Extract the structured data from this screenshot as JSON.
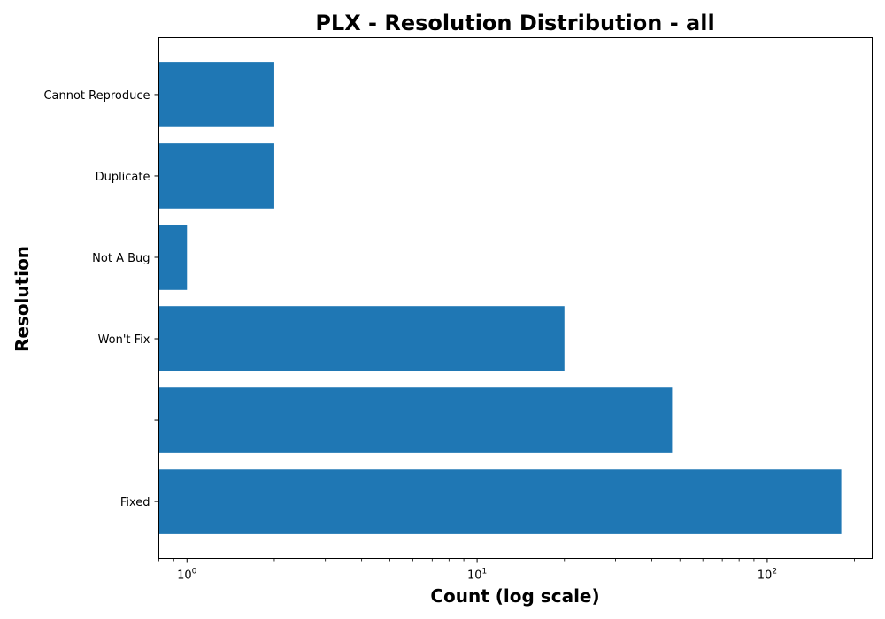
{
  "chart_data": {
    "type": "bar",
    "orientation": "horizontal",
    "title": "PLX - Resolution Distribution - all",
    "xlabel": "Count (log scale)",
    "ylabel": "Resolution",
    "x_scale": "log",
    "xlim": [
      0.8,
      230
    ],
    "x_ticks": [
      {
        "value": 1,
        "base": "10",
        "exp": "0"
      },
      {
        "value": 10,
        "base": "10",
        "exp": "1"
      },
      {
        "value": 100,
        "base": "10",
        "exp": "2"
      }
    ],
    "categories": [
      "Fixed",
      "",
      "Won't Fix",
      "Not A Bug",
      "Duplicate",
      "Cannot Reproduce"
    ],
    "values": [
      180,
      47,
      20,
      1,
      2,
      2
    ],
    "bar_color": "#1f77b4",
    "grid": false,
    "legend": "none"
  }
}
